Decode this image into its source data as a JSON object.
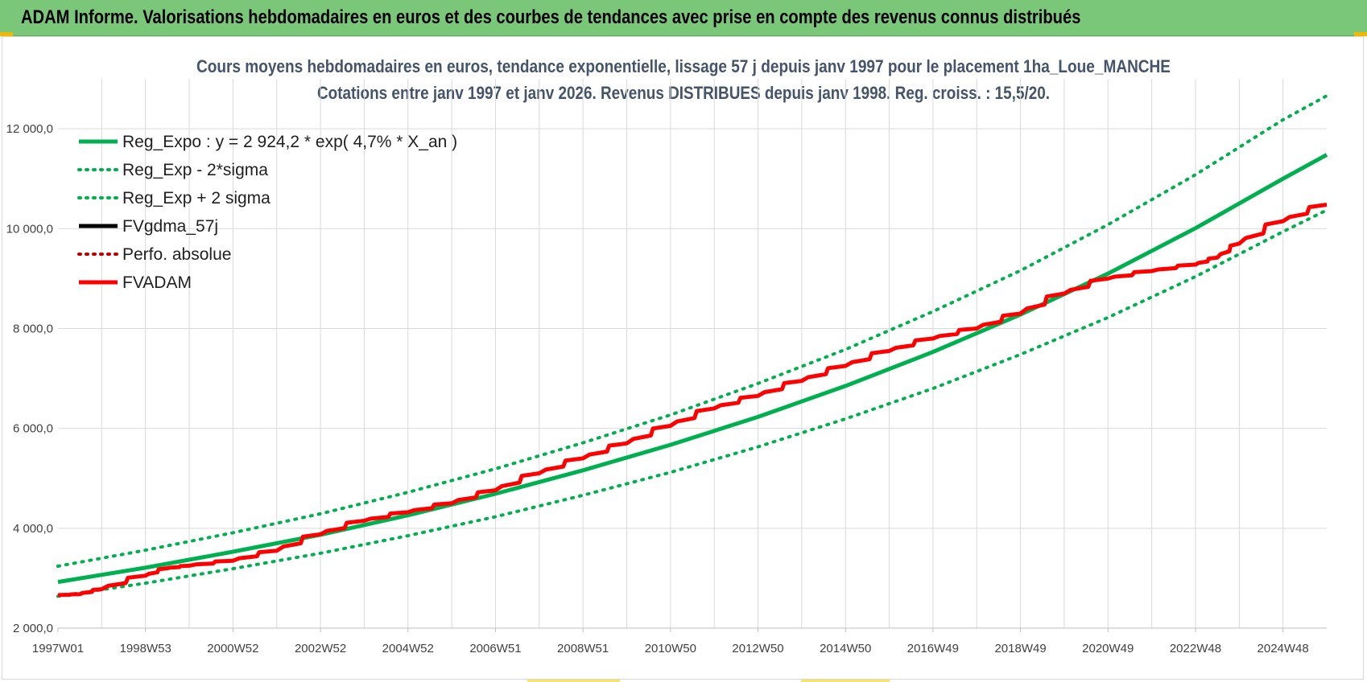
{
  "banner": {
    "title": "ADAM Informe. Valorisations hebdomadaires en euros et des courbes de tendances avec prise en compte des revenus connus distribués"
  },
  "colors": {
    "banner": "#7ac77a",
    "trend_green": "#00b050",
    "fvadam_red": "#ff0000",
    "fvgdma_black": "#000000",
    "grid": "#d9d9d9"
  },
  "chart_data": {
    "type": "line",
    "title": "Cours moyens hebdomadaires en euros, tendance exponentielle, lissage 57 j depuis janv 1997 pour le placement 1ha_Loue_MANCHE",
    "subtitle": "Cotations entre janv 1997 et janv 2026. Revenus DISTRIBUES depuis janv 1998. Reg. croiss. : 15,5/20.",
    "xlabel": "",
    "ylabel": "",
    "ylim": [
      2000,
      13000
    ],
    "y_ticks": [
      "2 000,0",
      "4 000,0",
      "6 000,0",
      "8 000,0",
      "10 000,0",
      "12 000,0"
    ],
    "y_tick_values": [
      2000,
      4000,
      6000,
      8000,
      10000,
      12000
    ],
    "x_ticks": [
      "1997W01",
      "1998W53",
      "2000W52",
      "2002W52",
      "2004W52",
      "2006W51",
      "2008W51",
      "2010W50",
      "2012W50",
      "2014W50",
      "2016W49",
      "2018W49",
      "2020W49",
      "2022W48",
      "2024W48"
    ],
    "x_tick_years": [
      1997.0,
      1999.0,
      2001.0,
      2003.0,
      2005.0,
      2007.0,
      2009.0,
      2011.0,
      2013.0,
      2015.0,
      2017.0,
      2019.0,
      2021.0,
      2023.0,
      2025.0
    ],
    "x_range": [
      1997.0,
      2026.0
    ],
    "grid": true,
    "legend_position": "top-left",
    "legend": [
      {
        "label": "Reg_Expo : y = 2 924,2 * exp( 4,7% *  X_an )",
        "color": "#00b050",
        "style": "solid"
      },
      {
        "label": "Reg_Exp - 2*sigma",
        "color": "#00b050",
        "style": "dotted"
      },
      {
        "label": "Reg_Exp + 2 sigma",
        "color": "#00b050",
        "style": "dotted"
      },
      {
        "label": "FVgdma_57j",
        "color": "#000000",
        "style": "solid"
      },
      {
        "label": "Perfo. absolue",
        "color": "#c00000",
        "style": "dotted"
      },
      {
        "label": "FVADAM",
        "color": "#ff0000",
        "style": "solid"
      }
    ],
    "series": [
      {
        "name": "Reg_Expo : y = 2 924,2 * exp( 4,7% *  X_an )",
        "x": [
          1997,
          1999,
          2001,
          2003,
          2005,
          2007,
          2009,
          2011,
          2013,
          2015,
          2017,
          2019,
          2021,
          2023,
          2025,
          2026
        ],
        "values": [
          2924,
          3210,
          3530,
          3870,
          4260,
          4690,
          5160,
          5670,
          6230,
          6850,
          7530,
          8280,
          9100,
          10010,
          11000,
          11480
        ]
      },
      {
        "name": "Reg_Exp - 2*sigma",
        "x": [
          1997,
          1999,
          2001,
          2003,
          2005,
          2007,
          2009,
          2011,
          2013,
          2015,
          2017,
          2019,
          2021,
          2023,
          2025,
          2026
        ],
        "values": [
          2640,
          2900,
          3190,
          3500,
          3850,
          4230,
          4660,
          5120,
          5630,
          6190,
          6800,
          7480,
          8220,
          9040,
          9940,
          10370
        ]
      },
      {
        "name": "Reg_Exp + 2 sigma",
        "x": [
          1997,
          1999,
          2001,
          2003,
          2005,
          2007,
          2009,
          2011,
          2013,
          2015,
          2017,
          2019,
          2021,
          2023,
          2025,
          2026
        ],
        "values": [
          3240,
          3560,
          3910,
          4290,
          4720,
          5190,
          5710,
          6270,
          6900,
          7580,
          8340,
          9160,
          10080,
          11080,
          12180,
          12660
        ]
      },
      {
        "name": "FVgdma_57j",
        "x": [
          1997.0,
          1997.5,
          1998.0,
          1999.0,
          1999.5,
          2000.0,
          2001.0,
          2002.0,
          2003.0,
          2004.0,
          2005.0,
          2006.0,
          2007.0,
          2008.0,
          2009.0,
          2010.0,
          2011.0,
          2012.0,
          2013.0,
          2014.0,
          2015.0,
          2016.0,
          2017.0,
          2018.0,
          2019.0,
          2020.0,
          2021.0,
          2022.0,
          2023.0,
          2023.5,
          2024.0,
          2025.0,
          2026.0
        ],
        "values": [
          2660,
          2680,
          2780,
          3050,
          3200,
          3250,
          3350,
          3550,
          3880,
          4150,
          4320,
          4500,
          4760,
          5100,
          5400,
          5700,
          6050,
          6400,
          6650,
          6950,
          7250,
          7550,
          7800,
          8000,
          8300,
          8700,
          9000,
          9150,
          9280,
          9420,
          9700,
          10150,
          10480
        ]
      },
      {
        "name": "FVADAM",
        "x": [
          1997.0,
          1997.5,
          1998.0,
          1999.0,
          1999.5,
          2000.0,
          2001.0,
          2002.0,
          2003.0,
          2004.0,
          2005.0,
          2006.0,
          2007.0,
          2008.0,
          2009.0,
          2010.0,
          2011.0,
          2012.0,
          2013.0,
          2014.0,
          2015.0,
          2016.0,
          2017.0,
          2018.0,
          2019.0,
          2020.0,
          2021.0,
          2022.0,
          2023.0,
          2023.5,
          2024.0,
          2025.0,
          2026.0
        ],
        "values": [
          2660,
          2680,
          2780,
          3050,
          3200,
          3250,
          3350,
          3550,
          3880,
          4150,
          4320,
          4500,
          4760,
          5100,
          5400,
          5700,
          6050,
          6400,
          6650,
          6950,
          7250,
          7550,
          7800,
          8000,
          8300,
          8700,
          9000,
          9150,
          9280,
          9420,
          9700,
          10150,
          10480
        ]
      }
    ]
  }
}
